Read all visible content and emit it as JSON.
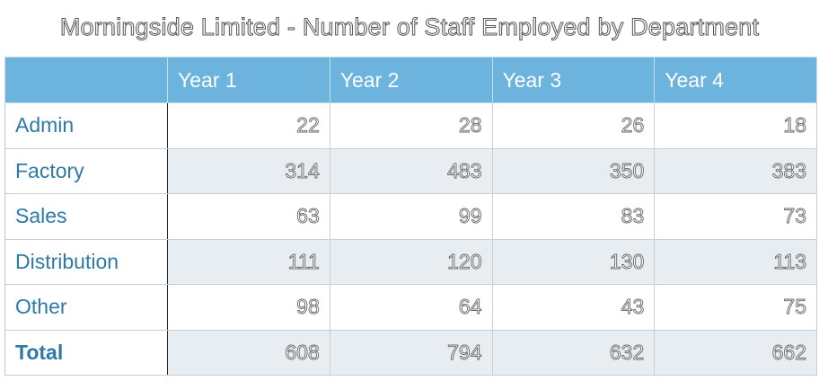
{
  "chart_data": {
    "type": "table",
    "title": "Morningside Limited - Number of Staff Employed by Department",
    "columns": [
      "Year 1",
      "Year 2",
      "Year 3",
      "Year 4"
    ],
    "rows": [
      {
        "label": "Admin",
        "values": [
          "22",
          "28",
          "26",
          "18"
        ]
      },
      {
        "label": "Factory",
        "values": [
          "314",
          "483",
          "350",
          "383"
        ]
      },
      {
        "label": "Sales",
        "values": [
          "63",
          "99",
          "83",
          "73"
        ]
      },
      {
        "label": "Distribution",
        "values": [
          "111",
          "120",
          "130",
          "113"
        ]
      },
      {
        "label": "Other",
        "values": [
          "98",
          "64",
          "43",
          "75"
        ]
      },
      {
        "label": "Total",
        "values": [
          "608",
          "794",
          "632",
          "662"
        ]
      }
    ],
    "colors": {
      "header_bg": "#6cb4dd",
      "row_label": "#2d7aa6",
      "alt_row_bg": "#e8edf1"
    }
  }
}
